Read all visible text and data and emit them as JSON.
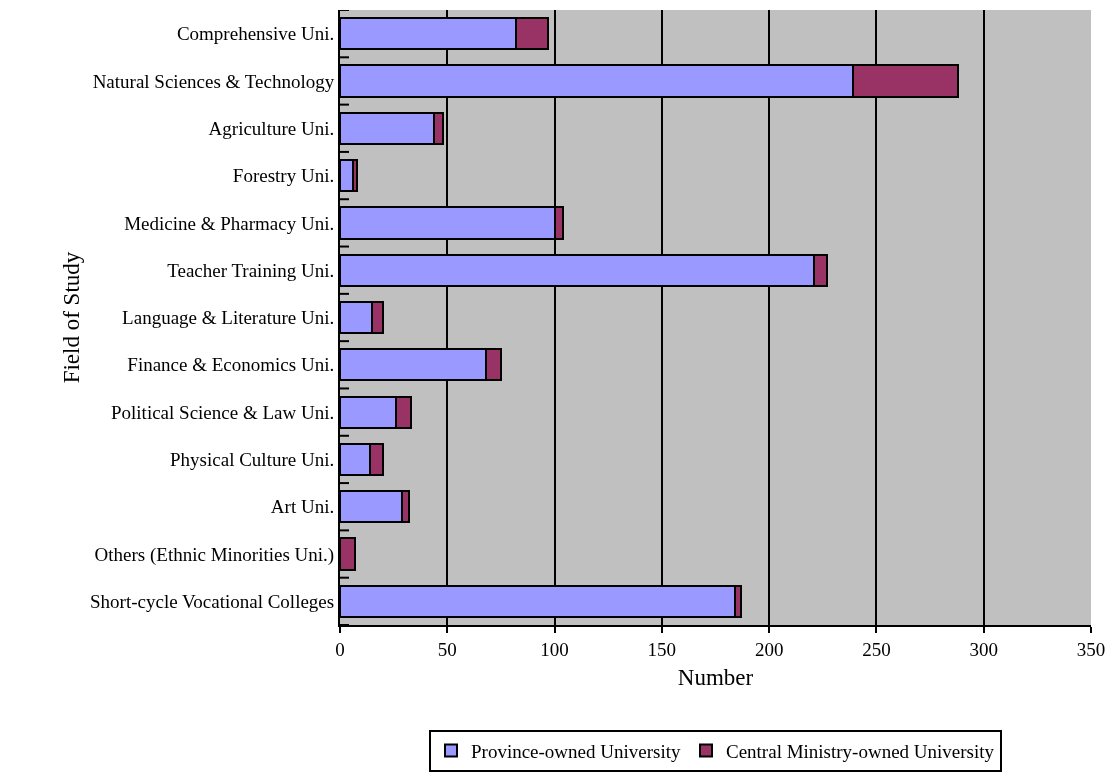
{
  "chart_data": {
    "type": "bar",
    "orientation": "horizontal",
    "stacked": true,
    "xlabel": "Number",
    "ylabel": "Field of Study",
    "categories": [
      "Comprehensive Uni.",
      "Natural Sciences & Technology",
      "Agriculture Uni.",
      "Forestry Uni.",
      "Medicine & Pharmacy Uni.",
      "Teacher Training Uni.",
      "Language & Literature Uni.",
      "Finance & Economics Uni.",
      "Political Science & Law Uni.",
      "Physical Culture Uni.",
      "Art Uni.",
      "Others (Ethnic Minorities Uni.)",
      "Short-cycle Vocational Colleges"
    ],
    "series": [
      {
        "name": "Province-owned University",
        "color": "#9999ff",
        "values": [
          82,
          239,
          44,
          6,
          100,
          221,
          15,
          68,
          26,
          14,
          29,
          0,
          184
        ]
      },
      {
        "name": "Central Ministry-owned University",
        "color": "#993366",
        "values": [
          15,
          49,
          4,
          2,
          4,
          6,
          5,
          7,
          7,
          6,
          3,
          7,
          3
        ]
      }
    ],
    "xlim": [
      0,
      350
    ],
    "xticks": [
      0,
      50,
      100,
      150,
      200,
      250,
      300,
      350
    ],
    "grid": "x",
    "legend": "bottom"
  }
}
